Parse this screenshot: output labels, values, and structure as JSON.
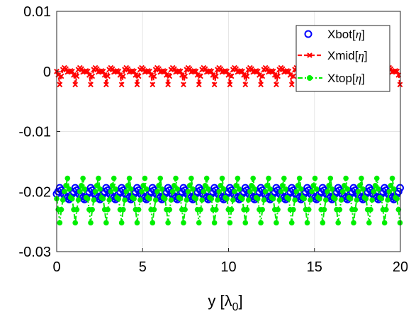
{
  "chart_data": {
    "type": "scatter",
    "xlabel": "y [λ0]",
    "xlabel_main": "y [λ",
    "xlabel_sub": "0",
    "xlabel_close": "]",
    "ylabel": "",
    "xlim": [
      0,
      20
    ],
    "ylim": [
      -0.03,
      0.01
    ],
    "grid": true,
    "legend_position": "top-right",
    "x_ticks": [
      0,
      5,
      10,
      15,
      20
    ],
    "x_tick_labels": [
      "0",
      "5",
      "10",
      "15",
      "20"
    ],
    "y_ticks": [
      0.01,
      0,
      -0.01,
      -0.02,
      -0.03
    ],
    "y_tick_labels": [
      "0.01",
      "0",
      "-0.01",
      "-0.02",
      "-0.03"
    ],
    "period": 0.9,
    "series": [
      {
        "name": "Xbot[η]",
        "name_main": "Xbot[",
        "name_eta": "η",
        "name_close": "]",
        "color": "#0000ff",
        "marker": "circle",
        "line": "none",
        "period_pattern": [
          {
            "dx": 0.0,
            "y": -0.0204
          },
          {
            "dx": 0.09,
            "y": -0.02
          },
          {
            "dx": 0.18,
            "y": -0.0194
          },
          {
            "dx": 0.27,
            "y": -0.0198
          },
          {
            "dx": 0.36,
            "y": -0.0203
          },
          {
            "dx": 0.45,
            "y": -0.0206
          },
          {
            "dx": 0.54,
            "y": -0.0208
          },
          {
            "dx": 0.63,
            "y": -0.0211
          },
          {
            "dx": 0.72,
            "y": -0.0213
          },
          {
            "dx": 0.81,
            "y": -0.021
          }
        ]
      },
      {
        "name": "Xmid[η]",
        "name_main": "Xmid[",
        "name_eta": "η",
        "name_close": "]",
        "color": "#ff0000",
        "marker": "x",
        "line": "dashed",
        "period_pattern": [
          {
            "dx": 0.0,
            "y": 0.0
          },
          {
            "dx": 0.09,
            "y": -0.0006
          },
          {
            "dx": 0.18,
            "y": -0.0022
          },
          {
            "dx": 0.27,
            "y": -0.0008
          },
          {
            "dx": 0.36,
            "y": 0.0003
          },
          {
            "dx": 0.45,
            "y": 0.0006
          },
          {
            "dx": 0.54,
            "y": 0.0004
          },
          {
            "dx": 0.63,
            "y": -0.0001
          },
          {
            "dx": 0.72,
            "y": 0.0
          },
          {
            "dx": 0.81,
            "y": 0.0001
          }
        ]
      },
      {
        "name": "Xtop[η]",
        "name_main": "Xtop[",
        "name_eta": "η",
        "name_close": "]",
        "color": "#00ee00",
        "marker": "dot",
        "line": "dashdot",
        "period_pattern": [
          {
            "dx": 0.0,
            "y": -0.0212
          },
          {
            "dx": 0.09,
            "y": -0.023
          },
          {
            "dx": 0.18,
            "y": -0.0252
          },
          {
            "dx": 0.27,
            "y": -0.023
          },
          {
            "dx": 0.36,
            "y": -0.0214
          },
          {
            "dx": 0.45,
            "y": -0.02
          },
          {
            "dx": 0.54,
            "y": -0.019
          },
          {
            "dx": 0.63,
            "y": -0.0178
          },
          {
            "dx": 0.72,
            "y": -0.0196
          },
          {
            "dx": 0.81,
            "y": -0.021
          }
        ]
      }
    ]
  }
}
